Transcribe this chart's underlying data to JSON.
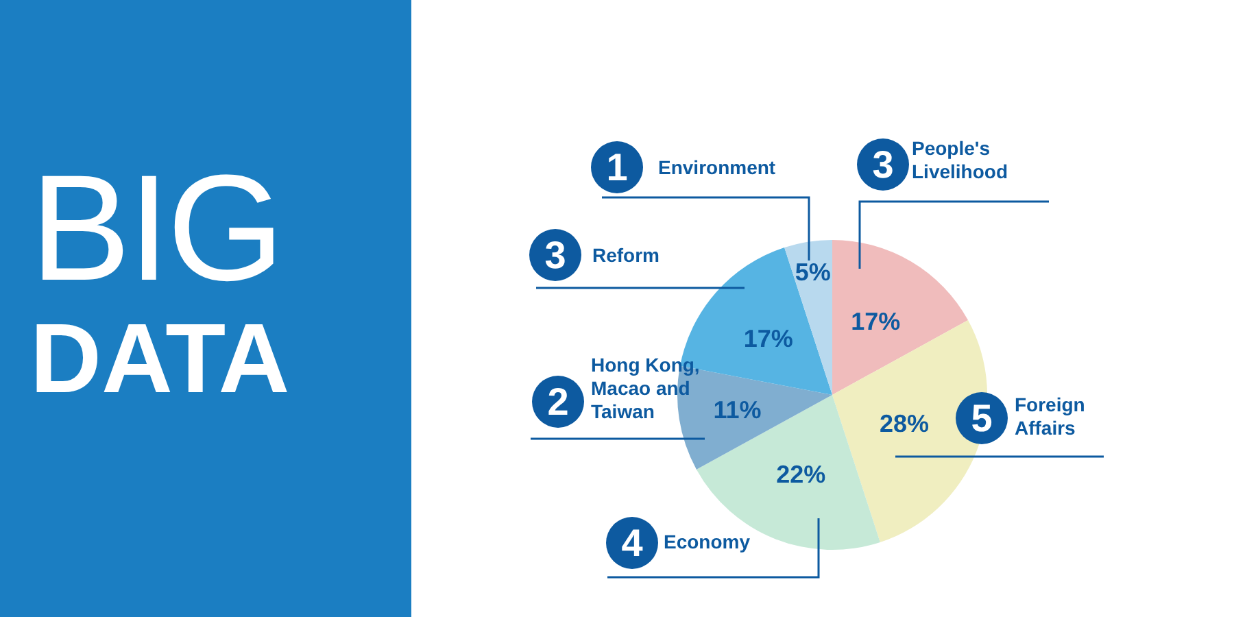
{
  "chart_data": {
    "type": "pie",
    "title": "BIG DATA",
    "categories": [
      "People's Livelihood",
      "Foreign Affairs",
      "Economy",
      "Hong Kong, Macao and Taiwan",
      "Reform",
      "Environment"
    ],
    "values": [
      17,
      28,
      22,
      11,
      17,
      5
    ],
    "value_labels": [
      "17%",
      "28%",
      "22%",
      "11%",
      "17%",
      "5%"
    ],
    "colors": [
      "#f0bcbc",
      "#f0eec0",
      "#c6e9d7",
      "#80aed0",
      "#56b4e3",
      "#b8d9ee"
    ],
    "annotations": [
      "3",
      "5",
      "4",
      "2",
      "3",
      "1"
    ]
  }
}
